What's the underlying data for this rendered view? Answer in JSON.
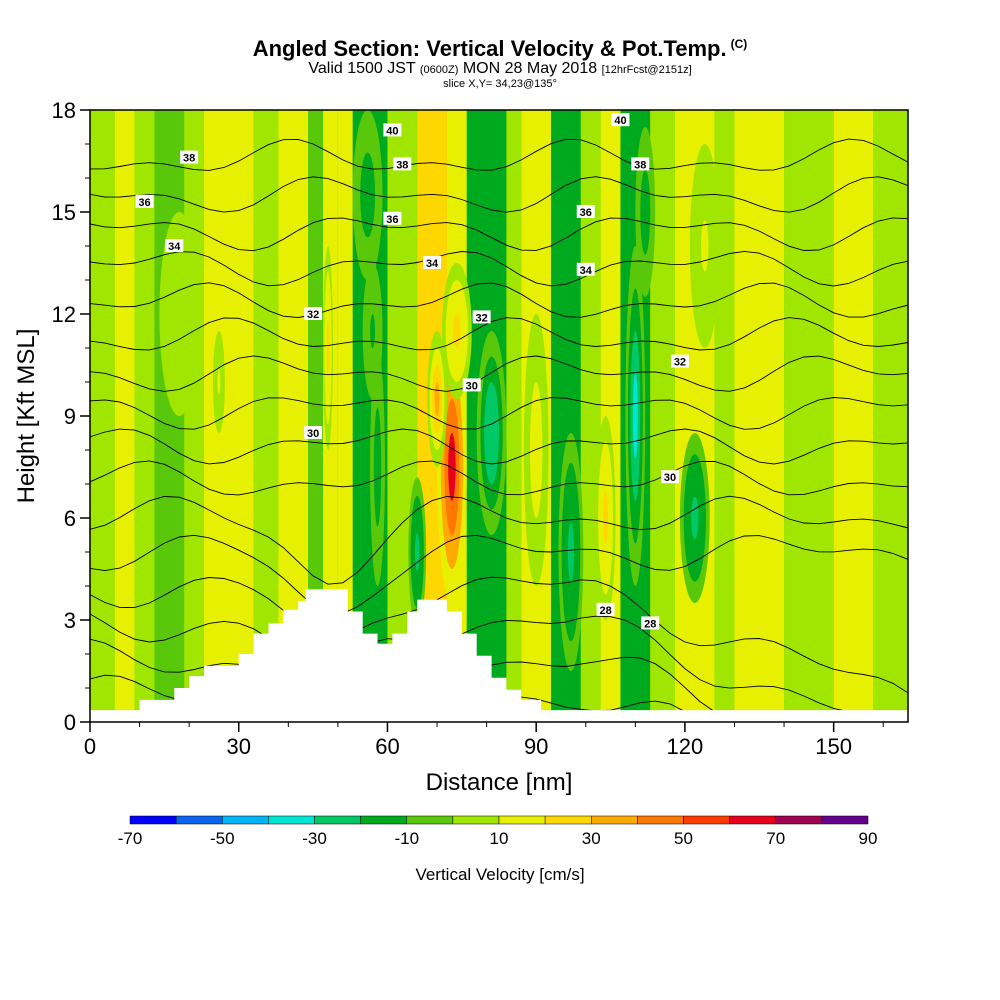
{
  "header": {
    "title": "Angled Section: Vertical Velocity & Pot.Temp.",
    "title_mark": "(C)",
    "subtitle_main_a": "Valid 1500 JST",
    "subtitle_utc": "(0600Z)",
    "subtitle_main_b": "MON 28 May 2018",
    "subtitle_fcst": "[12hrFcst@2151z]",
    "slice": "slice X,Y= 34,23@135°"
  },
  "chart_data": {
    "type": "heatmap",
    "xlabel": "Distance [nm]",
    "ylabel": "Height [Kft MSL]",
    "xlim": [
      0,
      165
    ],
    "ylim": [
      0,
      18
    ],
    "x_ticks": [
      0,
      30,
      60,
      90,
      120,
      150
    ],
    "y_ticks": [
      0,
      3,
      6,
      9,
      12,
      15,
      18
    ],
    "colorbar": {
      "label": "Vertical Velocity [cm/s]",
      "tick_labels": [
        "-70",
        "-50",
        "-30",
        "-10",
        "10",
        "30",
        "50",
        "70",
        "90"
      ],
      "levels": [
        -70,
        -60,
        -50,
        -40,
        -30,
        -20,
        -10,
        0,
        10,
        20,
        30,
        40,
        50,
        60,
        70,
        80,
        90
      ],
      "colors": [
        "#0000ff",
        "#0a64f0",
        "#00b4f5",
        "#00e6d2",
        "#00c864",
        "#00aa1e",
        "#5ac80a",
        "#a0e600",
        "#e6f000",
        "#ffd700",
        "#ffaa00",
        "#ff7800",
        "#ff3c00",
        "#e6001e",
        "#a00050",
        "#64008c"
      ]
    },
    "terrain_profile": [
      [
        0,
        0.35
      ],
      [
        10,
        0.35
      ],
      [
        10,
        0.65
      ],
      [
        17,
        0.65
      ],
      [
        17,
        1.0
      ],
      [
        20,
        1.0
      ],
      [
        20,
        1.35
      ],
      [
        23,
        1.35
      ],
      [
        23,
        1.65
      ],
      [
        30,
        1.65
      ],
      [
        30,
        2.0
      ],
      [
        33,
        2.0
      ],
      [
        33,
        2.6
      ],
      [
        36,
        2.6
      ],
      [
        36,
        2.9
      ],
      [
        39,
        2.9
      ],
      [
        39,
        3.3
      ],
      [
        42,
        3.3
      ],
      [
        42,
        3.55
      ],
      [
        43.5,
        3.55
      ],
      [
        43.5,
        3.9
      ],
      [
        52,
        3.9
      ],
      [
        52,
        3.25
      ],
      [
        55,
        3.25
      ],
      [
        55,
        2.6
      ],
      [
        58,
        2.6
      ],
      [
        58,
        2.3
      ],
      [
        61,
        2.3
      ],
      [
        61,
        2.6
      ],
      [
        64,
        2.6
      ],
      [
        64,
        3.25
      ],
      [
        66,
        3.25
      ],
      [
        66,
        3.6
      ],
      [
        72,
        3.6
      ],
      [
        72,
        3.25
      ],
      [
        75,
        3.25
      ],
      [
        75,
        2.6
      ],
      [
        78,
        2.6
      ],
      [
        78,
        1.95
      ],
      [
        81,
        1.95
      ],
      [
        81,
        1.3
      ],
      [
        84,
        1.3
      ],
      [
        84,
        0.95
      ],
      [
        87,
        0.95
      ],
      [
        87,
        0.65
      ],
      [
        91,
        0.65
      ],
      [
        91,
        0.35
      ],
      [
        165,
        0.35
      ]
    ],
    "velocity_cells": [
      {
        "x": 56,
        "y": 15.5,
        "rx": 3,
        "ry": 2.5,
        "w": -18
      },
      {
        "x": 57,
        "y": 11.5,
        "rx": 2,
        "ry": 2,
        "w": -12
      },
      {
        "x": 58,
        "y": 7.5,
        "rx": 1.5,
        "ry": 3.5,
        "w": -15
      },
      {
        "x": 66,
        "y": 5.0,
        "rx": 1.8,
        "ry": 2.2,
        "w": -22
      },
      {
        "x": 73,
        "y": 7.5,
        "rx": 3,
        "ry": 4,
        "w": 60
      },
      {
        "x": 70,
        "y": 9.5,
        "rx": 2,
        "ry": 2,
        "w": 35
      },
      {
        "x": 74,
        "y": 11.5,
        "rx": 3,
        "ry": 2,
        "w": 25
      },
      {
        "x": 81,
        "y": 8.5,
        "rx": 3,
        "ry": 3,
        "w": -30
      },
      {
        "x": 90,
        "y": 8,
        "rx": 2.5,
        "ry": 4,
        "w": 15
      },
      {
        "x": 97,
        "y": 5,
        "rx": 2.5,
        "ry": 3.5,
        "w": -25
      },
      {
        "x": 104,
        "y": 6,
        "rx": 2,
        "ry": 3,
        "w": 25
      },
      {
        "x": 110,
        "y": 9,
        "rx": 2,
        "ry": 5,
        "w": -35
      },
      {
        "x": 112,
        "y": 15,
        "rx": 2,
        "ry": 2.5,
        "w": -20
      },
      {
        "x": 122,
        "y": 6,
        "rx": 3,
        "ry": 2.5,
        "w": -25
      },
      {
        "x": 124,
        "y": 14,
        "rx": 3,
        "ry": 3,
        "w": 12
      },
      {
        "x": 48,
        "y": 11,
        "rx": 1,
        "ry": 3,
        "w": 20
      },
      {
        "x": 26,
        "y": 10,
        "rx": 1.2,
        "ry": 1.5,
        "w": 12
      },
      {
        "x": 18,
        "y": 12,
        "rx": 4,
        "ry": 3,
        "w": 8
      }
    ],
    "contour_labels": [
      {
        "text": "40",
        "x": 61,
        "y": 17.4
      },
      {
        "text": "40",
        "x": 107,
        "y": 17.7
      },
      {
        "text": "38",
        "x": 20,
        "y": 16.6
      },
      {
        "text": "38",
        "x": 111,
        "y": 16.4
      },
      {
        "text": "38",
        "x": 63,
        "y": 16.4
      },
      {
        "text": "36",
        "x": 11,
        "y": 15.3
      },
      {
        "text": "36",
        "x": 61,
        "y": 14.8
      },
      {
        "text": "36",
        "x": 100,
        "y": 15.0
      },
      {
        "text": "34",
        "x": 17,
        "y": 14.0
      },
      {
        "text": "34",
        "x": 69,
        "y": 13.5
      },
      {
        "text": "34",
        "x": 100,
        "y": 13.3
      },
      {
        "text": "32",
        "x": 45,
        "y": 12.0
      },
      {
        "text": "32",
        "x": 79,
        "y": 11.9
      },
      {
        "text": "32",
        "x": 119,
        "y": 10.6
      },
      {
        "text": "30",
        "x": 45,
        "y": 8.5
      },
      {
        "text": "30",
        "x": 77,
        "y": 9.9
      },
      {
        "text": "30",
        "x": 117,
        "y": 7.2
      },
      {
        "text": "28",
        "x": 104,
        "y": 3.3
      },
      {
        "text": "28",
        "x": 113,
        "y": 2.9
      }
    ]
  }
}
